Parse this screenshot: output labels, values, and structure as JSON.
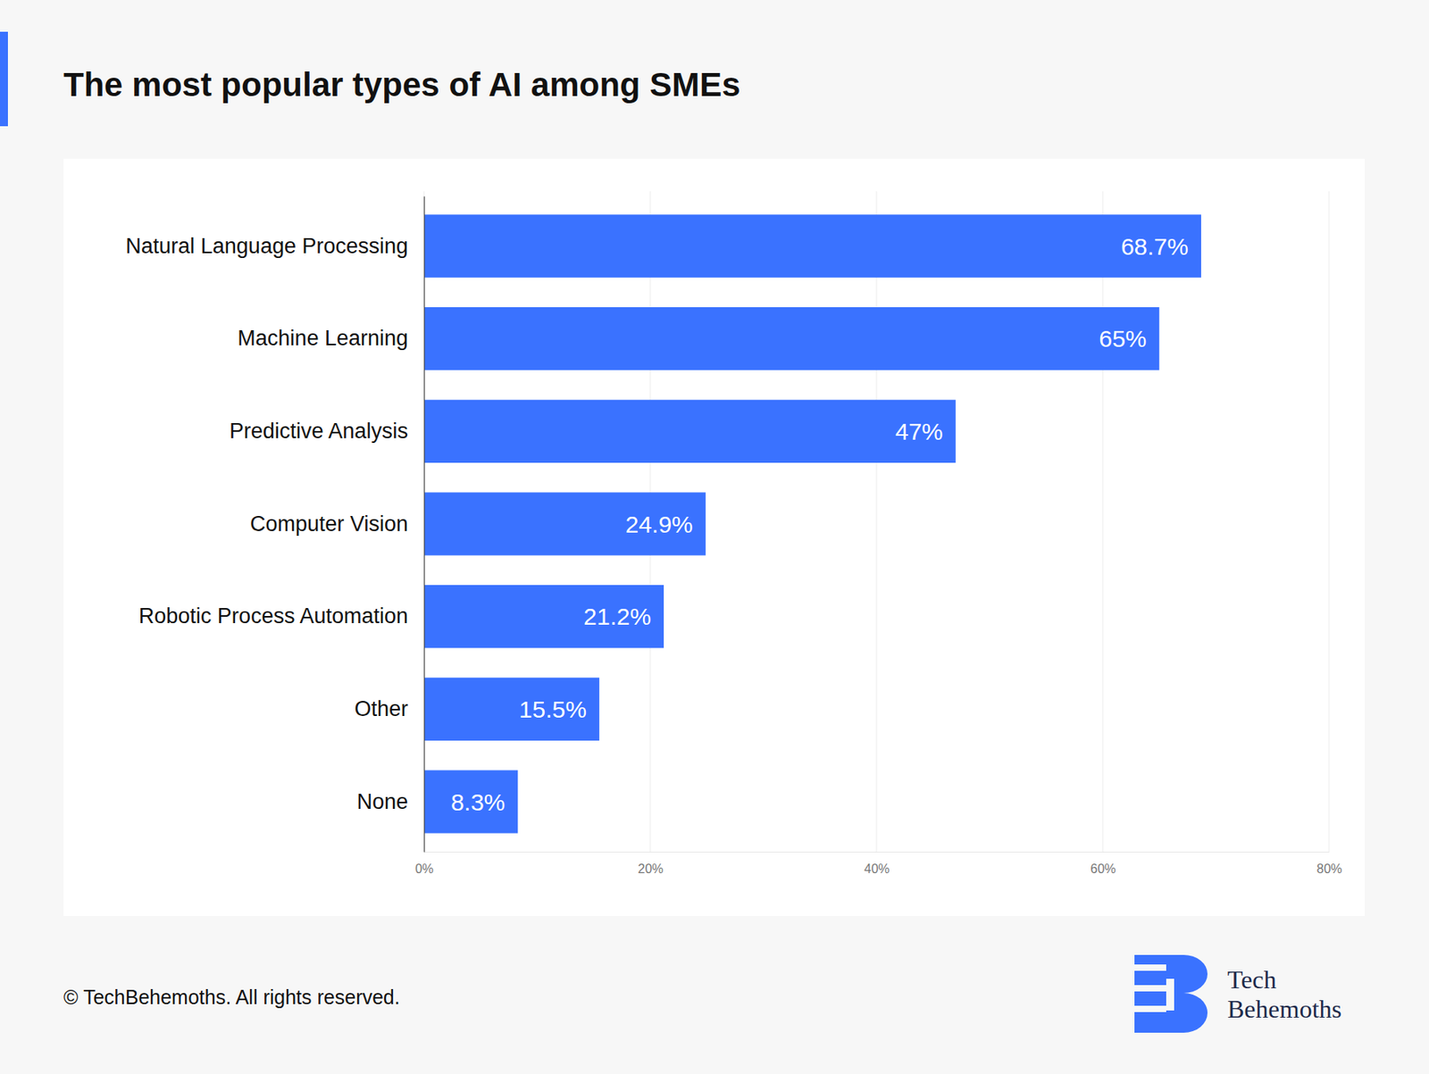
{
  "chart_data": {
    "type": "bar",
    "orientation": "horizontal",
    "title": "The most popular types of AI among SMEs",
    "categories": [
      "Natural Language Processing",
      "Machine Learning",
      "Predictive Analysis",
      "Computer Vision",
      "Robotic Process Automation",
      "Other",
      "None"
    ],
    "values": [
      68.7,
      65,
      47,
      24.9,
      21.2,
      15.5,
      8.3
    ],
    "value_labels": [
      "68.7%",
      "65%",
      "47%",
      "24.9%",
      "21.2%",
      "15.5%",
      "8.3%"
    ],
    "color": "#3a72ff",
    "xlim": [
      0,
      80
    ],
    "xticks": [
      {
        "value": 0,
        "label": "0%"
      },
      {
        "value": 20,
        "label": "20%"
      },
      {
        "value": 40,
        "label": "40%"
      },
      {
        "value": 60,
        "label": "60%"
      },
      {
        "value": 80,
        "label": "80%"
      }
    ],
    "grid": true,
    "data_labels": true,
    "annotations": [
      "© TechBehemoths. All rights reserved.",
      "Tech",
      "Behemoths"
    ]
  }
}
